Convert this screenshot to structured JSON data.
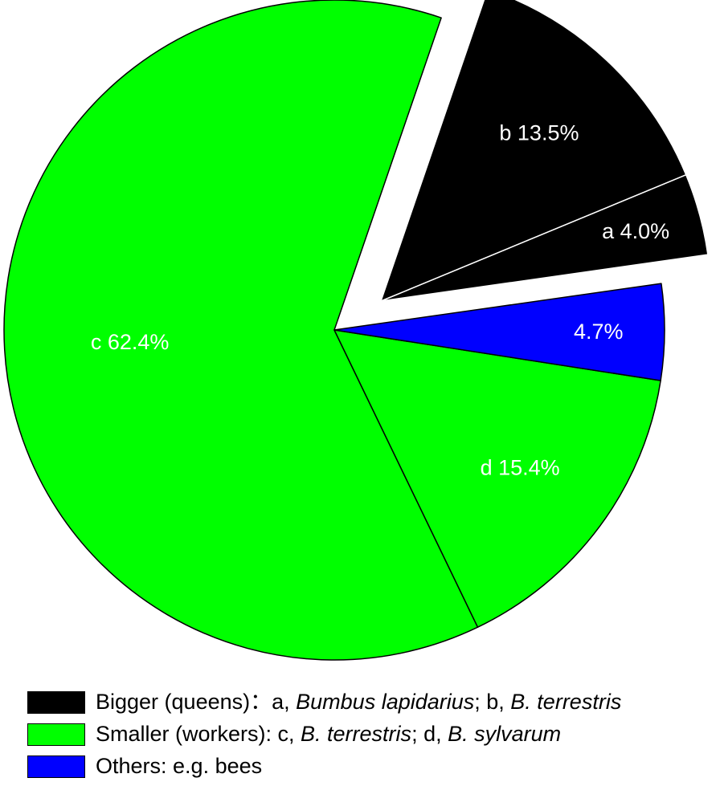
{
  "chart_data": {
    "type": "pie",
    "slices": [
      {
        "key": "a",
        "label": "a 4.0%",
        "value": 4.0,
        "color": "#000000",
        "label_color": "#ffffff",
        "exploded": true
      },
      {
        "key": "b",
        "label": "b 13.5%",
        "value": 13.5,
        "color": "#000000",
        "label_color": "#ffffff",
        "exploded": true
      },
      {
        "key": "c",
        "label": "c 62.4%",
        "value": 62.4,
        "color": "#00ff00",
        "label_color": "#ffffff",
        "exploded": false
      },
      {
        "key": "d",
        "label": "d 15.4%",
        "value": 15.4,
        "color": "#00ff00",
        "label_color": "#ffffff",
        "exploded": false
      },
      {
        "key": "others",
        "label": "4.7%",
        "value": 4.7,
        "color": "#0000ff",
        "label_color": "#ffffff",
        "exploded": false
      }
    ],
    "legend_placement": "bottom",
    "legend": [
      {
        "color": "#000000",
        "parts": [
          {
            "text": "Bigger (queens)：a, ",
            "italic": false
          },
          {
            "text": "Bumbus lapidarius",
            "italic": true
          },
          {
            "text": "; b, ",
            "italic": false
          },
          {
            "text": "B. terrestris",
            "italic": true
          }
        ]
      },
      {
        "color": "#00ff00",
        "parts": [
          {
            "text": "Smaller (workers): c, ",
            "italic": false
          },
          {
            "text": "B. terrestris",
            "italic": true
          },
          {
            "text": "; d, ",
            "italic": false
          },
          {
            "text": "B. sylvarum",
            "italic": true
          }
        ]
      },
      {
        "color": "#0000ff",
        "parts": [
          {
            "text": "Others: e.g. bees",
            "italic": false
          }
        ]
      }
    ]
  }
}
